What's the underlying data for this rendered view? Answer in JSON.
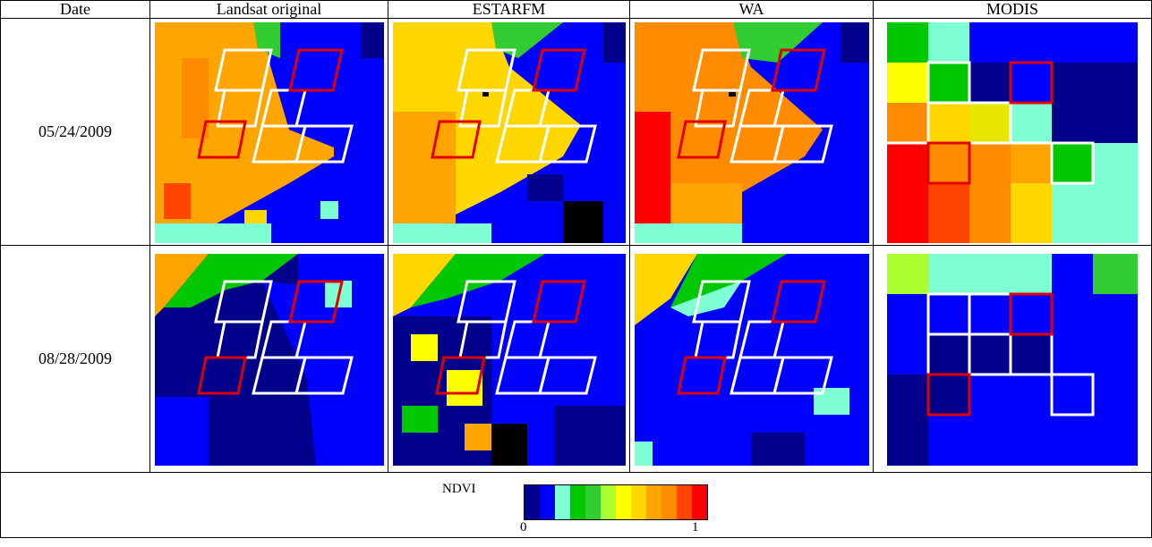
{
  "headers": [
    "Date",
    "Landsat original",
    "ESTARFM",
    "WA",
    "MODIS"
  ],
  "rows": [
    {
      "date": "05/24/2009"
    },
    {
      "date": "08/28/2009"
    }
  ],
  "legend": {
    "label": "NDVI",
    "min_label": "0",
    "max_label": "1",
    "colors": [
      "#00008b",
      "#0000ff",
      "#7fffd4",
      "#00c800",
      "#32cd32",
      "#adff2f",
      "#ffff00",
      "#ffd700",
      "#ffa500",
      "#ff8c00",
      "#ff4500",
      "#ff0000"
    ]
  },
  "palette": {
    "dark_blue": "#00008b",
    "blue": "#0000ff",
    "aquamarine": "#7fffd4",
    "green": "#00c800",
    "yellow": "#ffff00",
    "orange": "#ffa500",
    "red": "#ff0000",
    "outline_white": "#ffffff",
    "outline_red": "#e00000"
  }
}
